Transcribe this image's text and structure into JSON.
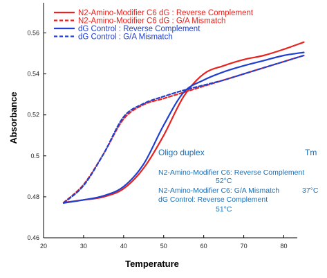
{
  "chart_data": {
    "type": "line",
    "xlabel": "Temperature",
    "ylabel": "Absorbance",
    "xlim": [
      20,
      90
    ],
    "ylim": [
      0.46,
      0.57
    ],
    "xticks": [
      "20",
      "30",
      "40",
      "50",
      "60",
      "70",
      "80"
    ],
    "yticks": [
      "0.46",
      "0.48",
      "0.5",
      "0.52",
      "0.54",
      "0.56"
    ],
    "grid": false,
    "legend_position": "top-left",
    "series": [
      {
        "name": "N2-Amino-Modifier C6 dG : Reverse Complement",
        "color": "#e8231f",
        "style": "solid",
        "x": [
          25,
          30,
          35,
          40,
          45,
          50,
          55,
          60,
          65,
          70,
          75,
          80,
          85
        ],
        "y": [
          0.4772,
          0.4785,
          0.48,
          0.484,
          0.494,
          0.51,
          0.529,
          0.54,
          0.544,
          0.547,
          0.549,
          0.552,
          0.5555
        ]
      },
      {
        "name": "N2-Amino-Modifier C6 dG : G/A Mismatch",
        "color": "#e8231f",
        "style": "dashed",
        "x": [
          25,
          30,
          35,
          40,
          45,
          50,
          55,
          60,
          65,
          70,
          75,
          80,
          85
        ],
        "y": [
          0.4772,
          0.486,
          0.501,
          0.518,
          0.525,
          0.528,
          0.531,
          0.534,
          0.537,
          0.54,
          0.543,
          0.546,
          0.549
        ]
      },
      {
        "name": "dG Control : Reverse Complement",
        "color": "#1f3fd0",
        "style": "solid",
        "x": [
          25,
          30,
          35,
          40,
          45,
          50,
          55,
          60,
          65,
          70,
          75,
          80,
          85
        ],
        "y": [
          0.477,
          0.4785,
          0.4805,
          0.485,
          0.496,
          0.515,
          0.531,
          0.537,
          0.541,
          0.544,
          0.5465,
          0.549,
          0.5505
        ]
      },
      {
        "name": "dG Control : G/A Mismatch",
        "color": "#1f3fd0",
        "style": "dashed",
        "x": [
          25,
          30,
          35,
          40,
          45,
          50,
          55,
          60,
          65,
          70,
          75,
          80,
          85
        ],
        "y": [
          0.477,
          0.4855,
          0.501,
          0.519,
          0.5255,
          0.529,
          0.532,
          0.5345,
          0.537,
          0.54,
          0.543,
          0.546,
          0.549
        ]
      }
    ],
    "annotations": {
      "header_left": "Oligo duplex",
      "header_right": "Tm",
      "lines": [
        "N2-Amino-Modifier C6: Reverse Complement",
        "52°C",
        "N2-Amino-Modifier C6: G/A Mismatch",
        "37°C",
        "dG Control: Reverse Complement",
        "51°C"
      ],
      "color": "#1a6fb8"
    }
  }
}
